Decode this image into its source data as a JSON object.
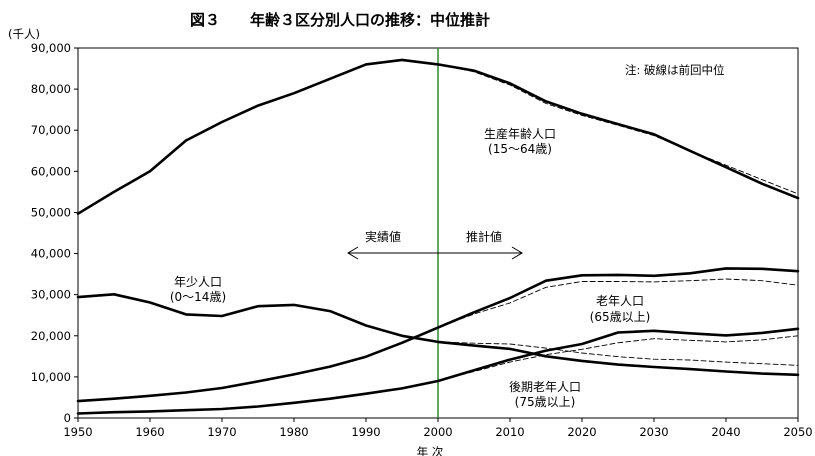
{
  "chart_data": {
    "type": "line",
    "title": "図３　　年齢３区分別人口の推移：中位推計",
    "ylabel": "(千人)",
    "xlabel": "年 次",
    "xlim": [
      1950,
      2050
    ],
    "ylim": [
      0,
      90000
    ],
    "x_ticks": [
      "1950",
      "1960",
      "1970",
      "1980",
      "1990",
      "2000",
      "2010",
      "2020",
      "2030",
      "2040",
      "2050"
    ],
    "y_ticks": [
      "0",
      "10,000",
      "20,000",
      "30,000",
      "40,000",
      "50,000",
      "60,000",
      "70,000",
      "80,000",
      "90,000"
    ],
    "divider_year": 2000,
    "divider_color": "#2e8b2e",
    "note": "注: 破線は前回中位",
    "arrow_left_label": "実績値",
    "arrow_right_label": "推計値",
    "series": [
      {
        "name": "生産年齢人口",
        "sublabel": "(15〜64歳)",
        "style": "solid",
        "x": [
          1950,
          1955,
          1960,
          1965,
          1970,
          1975,
          1980,
          1985,
          1990,
          1995,
          2000,
          2005,
          2010,
          2015,
          2020,
          2025,
          2030,
          2035,
          2040,
          2045,
          2050
        ],
        "y": [
          49700,
          55000,
          60000,
          67500,
          72000,
          76000,
          79000,
          82500,
          86000,
          87100,
          86000,
          84500,
          81400,
          77000,
          74000,
          71500,
          69000,
          65000,
          61000,
          57000,
          53500
        ]
      },
      {
        "name": "生産年齢人口(前回)",
        "style": "dashed",
        "x": [
          2000,
          2005,
          2010,
          2015,
          2020,
          2025,
          2030,
          2035,
          2040,
          2045,
          2050
        ],
        "y": [
          86000,
          84200,
          81000,
          76500,
          73600,
          71200,
          68700,
          65000,
          61500,
          58000,
          54500
        ]
      },
      {
        "name": "老年人口",
        "sublabel": "(65歳以上)",
        "style": "solid",
        "x": [
          1950,
          1955,
          1960,
          1965,
          1970,
          1975,
          1980,
          1985,
          1990,
          1995,
          2000,
          2005,
          2010,
          2015,
          2020,
          2025,
          2030,
          2035,
          2040,
          2045,
          2050
        ],
        "y": [
          4100,
          4700,
          5400,
          6200,
          7300,
          8900,
          10600,
          12500,
          14900,
          18300,
          22000,
          25700,
          29200,
          33400,
          34700,
          34800,
          34600,
          35200,
          36400,
          36300,
          35700
        ]
      },
      {
        "name": "老年人口(前回)",
        "style": "dashed",
        "x": [
          2000,
          2005,
          2010,
          2015,
          2020,
          2025,
          2030,
          2035,
          2040,
          2045,
          2050
        ],
        "y": [
          22000,
          25300,
          28000,
          31800,
          33200,
          33200,
          33100,
          33400,
          33800,
          33400,
          32300
        ]
      },
      {
        "name": "年少人口",
        "sublabel": "(0〜14歳)",
        "style": "solid",
        "x": [
          1950,
          1955,
          1960,
          1965,
          1970,
          1975,
          1980,
          1985,
          1990,
          1995,
          2000,
          2005,
          2010,
          2015,
          2020,
          2025,
          2030,
          2035,
          2040,
          2045,
          2050
        ],
        "y": [
          29400,
          30100,
          28100,
          25200,
          24800,
          27200,
          27500,
          26000,
          22500,
          20000,
          18500,
          17600,
          16800,
          15000,
          13900,
          13000,
          12400,
          11900,
          11300,
          10800,
          10500
        ]
      },
      {
        "name": "年少人口(前回)",
        "style": "dashed",
        "x": [
          2000,
          2005,
          2010,
          2015,
          2020,
          2025,
          2030,
          2035,
          2040,
          2045,
          2050
        ],
        "y": [
          18500,
          18200,
          18000,
          17000,
          15800,
          14900,
          14300,
          14100,
          13600,
          13200,
          12800
        ]
      },
      {
        "name": "後期老年人口",
        "sublabel": "(75歳以上)",
        "style": "solid",
        "x": [
          1950,
          1955,
          1960,
          1965,
          1970,
          1975,
          1980,
          1985,
          1990,
          1995,
          2000,
          2005,
          2010,
          2015,
          2020,
          2025,
          2030,
          2035,
          2040,
          2045,
          2050
        ],
        "y": [
          1100,
          1400,
          1600,
          1900,
          2200,
          2800,
          3700,
          4700,
          5900,
          7200,
          9000,
          11600,
          14200,
          16400,
          18000,
          20800,
          21200,
          20600,
          20100,
          20700,
          21700
        ]
      },
      {
        "name": "後期老年人口(前回)",
        "style": "dashed",
        "x": [
          2000,
          2005,
          2010,
          2015,
          2020,
          2025,
          2030,
          2035,
          2040,
          2045,
          2050
        ],
        "y": [
          9000,
          11300,
          13600,
          15400,
          16700,
          18300,
          19300,
          18900,
          18500,
          19000,
          20000
        ]
      }
    ]
  }
}
